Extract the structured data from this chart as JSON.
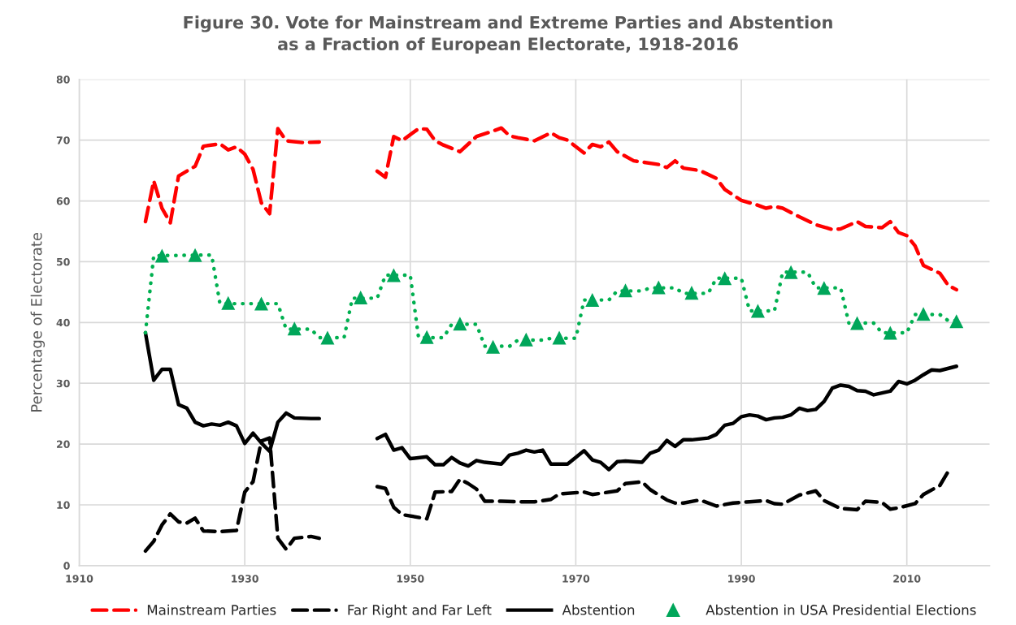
{
  "chart_data": {
    "type": "line",
    "title": "Figure 30. Vote for Mainstream and Extreme Parties and Abstention\nas a Fraction of European Electorate, 1918-2016",
    "ylabel": "Percentage of Electorate",
    "xlim": [
      1910,
      2020
    ],
    "xticks": [
      1910,
      1930,
      1950,
      1970,
      1990,
      2010
    ],
    "ylim": [
      0,
      80
    ],
    "yticks": [
      0,
      10,
      20,
      30,
      40,
      50,
      60,
      70,
      80
    ],
    "grid": true,
    "legend": "bottom",
    "series": [
      {
        "name": "Mainstream Parties",
        "color": "#ff0000",
        "line_style": "dashed",
        "marker": "none",
        "x": [
          1918,
          1919,
          1920,
          1921,
          1922,
          1924,
          1925,
          1927,
          1928,
          1929,
          1930,
          1931,
          1932,
          1933,
          1934,
          1935,
          1937,
          1939,
          1942,
          1946,
          1947,
          1948,
          1949,
          1951,
          1952,
          1953,
          1954,
          1956,
          1958,
          1960,
          1961,
          1962,
          1963,
          1965,
          1967,
          1968,
          1969,
          1971,
          1972,
          1973,
          1974,
          1975,
          1977,
          1980,
          1981,
          1982,
          1983,
          1985,
          1987,
          1988,
          1990,
          1992,
          1993,
          1994,
          1995,
          1997,
          1999,
          2001,
          2002,
          2004,
          2005,
          2007,
          2008,
          2009,
          2010,
          2011,
          2012,
          2014,
          2015,
          2016
        ],
        "values": [
          56.6,
          63.3,
          58.8,
          56.4,
          64.1,
          65.7,
          69.0,
          69.4,
          68.4,
          68.9,
          67.7,
          65.2,
          59.7,
          57.9,
          71.9,
          69.9,
          69.6,
          69.7,
          null,
          64.9,
          63.9,
          70.6,
          69.9,
          71.9,
          71.8,
          69.9,
          69.2,
          68.1,
          70.6,
          71.5,
          72.0,
          70.7,
          70.4,
          69.9,
          71.2,
          70.4,
          70.0,
          67.9,
          69.3,
          68.9,
          69.7,
          68.1,
          66.6,
          66.0,
          65.5,
          66.6,
          65.4,
          65.0,
          63.7,
          61.9,
          60.1,
          59.3,
          58.8,
          59.1,
          58.8,
          57.4,
          56.1,
          55.3,
          55.4,
          56.6,
          55.8,
          55.6,
          56.6,
          54.8,
          54.3,
          52.6,
          49.4,
          48.1,
          46.1,
          45.4
        ]
      },
      {
        "name": "Far Right and Far Left",
        "color": "#000000",
        "line_style": "dashed",
        "marker": "none",
        "x": [
          1918,
          1919,
          1920,
          1921,
          1922,
          1923,
          1924,
          1925,
          1927,
          1929,
          1930,
          1931,
          1932,
          1933,
          1934,
          1935,
          1936,
          1938,
          1939,
          1942,
          1946,
          1947,
          1948,
          1949,
          1952,
          1953,
          1955,
          1956,
          1957,
          1958,
          1959,
          1961,
          1963,
          1965,
          1967,
          1968,
          1971,
          1972,
          1975,
          1976,
          1978,
          1979,
          1981,
          1982,
          1983,
          1985,
          1987,
          1989,
          1991,
          1993,
          1994,
          1995,
          1997,
          1999,
          2000,
          2002,
          2004,
          2005,
          2007,
          2008,
          2009,
          2011,
          2012,
          2014,
          2015
        ],
        "values": [
          2.4,
          4.0,
          6.7,
          8.5,
          7.2,
          7.0,
          7.8,
          5.7,
          5.6,
          5.8,
          12.1,
          13.8,
          20.5,
          21.0,
          4.5,
          2.7,
          4.5,
          4.8,
          4.5,
          null,
          13.0,
          12.7,
          9.6,
          8.4,
          7.7,
          12.1,
          12.2,
          14.2,
          13.5,
          12.6,
          10.6,
          10.6,
          10.5,
          10.5,
          10.9,
          11.8,
          12.1,
          11.7,
          12.3,
          13.5,
          13.8,
          12.5,
          10.8,
          10.3,
          10.3,
          10.8,
          9.8,
          10.3,
          10.5,
          10.7,
          10.2,
          10.1,
          11.6,
          12.3,
          10.7,
          9.4,
          9.2,
          10.6,
          10.4,
          9.3,
          9.5,
          10.2,
          11.7,
          13.2,
          15.5
        ]
      },
      {
        "name": "Abstention",
        "color": "#000000",
        "line_style": "solid",
        "marker": "none",
        "x": [
          1918,
          1919,
          1920,
          1921,
          1922,
          1923,
          1924,
          1925,
          1926,
          1927,
          1928,
          1929,
          1930,
          1931,
          1932,
          1933,
          1934,
          1935,
          1936,
          1938,
          1939,
          1942,
          1946,
          1947,
          1948,
          1949,
          1950,
          1952,
          1953,
          1954,
          1955,
          1956,
          1957,
          1958,
          1959,
          1961,
          1962,
          1963,
          1964,
          1965,
          1966,
          1967,
          1969,
          1970,
          1971,
          1972,
          1973,
          1974,
          1975,
          1976,
          1978,
          1979,
          1980,
          1981,
          1982,
          1983,
          1984,
          1986,
          1987,
          1988,
          1989,
          1990,
          1991,
          1992,
          1993,
          1994,
          1995,
          1996,
          1997,
          1998,
          1999,
          2000,
          2001,
          2002,
          2003,
          2004,
          2005,
          2006,
          2007,
          2008,
          2009,
          2010,
          2011,
          2012,
          2013,
          2014,
          2016
        ],
        "values": [
          38.3,
          30.5,
          32.3,
          32.3,
          26.5,
          25.9,
          23.6,
          23.0,
          23.3,
          23.1,
          23.6,
          23.0,
          20.1,
          21.8,
          20.2,
          18.8,
          23.6,
          25.1,
          24.3,
          24.2,
          24.2,
          null,
          20.9,
          21.6,
          19.0,
          19.4,
          17.6,
          17.9,
          16.6,
          16.6,
          17.8,
          16.9,
          16.4,
          17.3,
          17.0,
          16.7,
          18.2,
          18.5,
          19.0,
          18.7,
          19.0,
          16.7,
          16.7,
          17.8,
          18.9,
          17.4,
          17.0,
          15.8,
          17.1,
          17.2,
          17.0,
          18.5,
          19.0,
          20.6,
          19.6,
          20.7,
          20.7,
          21.0,
          21.6,
          23.1,
          23.4,
          24.5,
          24.8,
          24.6,
          24.0,
          24.3,
          24.4,
          24.8,
          25.9,
          25.5,
          25.7,
          27.0,
          29.2,
          29.7,
          29.5,
          28.8,
          28.7,
          28.1,
          28.4,
          28.7,
          30.3,
          29.9,
          30.5,
          31.4,
          32.2,
          32.1,
          32.8
        ]
      },
      {
        "color": "#00b050",
        "line_style": "dotted",
        "marker": "none",
        "x": [
          1918,
          1919,
          1926,
          1927,
          1934,
          1935,
          1938,
          1939,
          1942,
          1943,
          1946,
          1947,
          1950,
          1951,
          1954,
          1955,
          1958,
          1959,
          1962,
          1963,
          1966,
          1967,
          1970,
          1971,
          1974,
          1975,
          1978,
          1979,
          1982,
          1983,
          1986,
          1987,
          1990,
          1991,
          1994,
          1995,
          1998,
          1999,
          2002,
          2003,
          2006,
          2007,
          2010,
          2011,
          2014,
          2015,
          2016
        ],
        "values": [
          38.3,
          51.0,
          51.1,
          43.1,
          43.1,
          38.9,
          38.9,
          37.5,
          37.5,
          44.0,
          44.0,
          47.8,
          47.8,
          37.5,
          37.5,
          39.7,
          39.7,
          36.1,
          36.1,
          37.1,
          37.1,
          37.4,
          37.4,
          43.7,
          43.7,
          45.2,
          45.2,
          45.7,
          45.7,
          44.8,
          44.8,
          47.3,
          47.3,
          41.9,
          41.9,
          48.3,
          48.3,
          45.7,
          45.7,
          39.9,
          39.9,
          38.3,
          38.3,
          41.3,
          41.3,
          40.3,
          40.3
        ]
      },
      {
        "name": "Abstention in USA Presidential Elections",
        "type": "scatter",
        "color": "#00a65a",
        "marker": "triangle",
        "x": [
          1920,
          1924,
          1928,
          1932,
          1936,
          1940,
          1944,
          1948,
          1952,
          1956,
          1960,
          1964,
          1968,
          1972,
          1976,
          1980,
          1984,
          1988,
          1992,
          1996,
          2000,
          2004,
          2008,
          2012,
          2016
        ],
        "values": [
          51.0,
          51.1,
          43.2,
          43.1,
          39.0,
          37.5,
          44.1,
          47.8,
          37.6,
          39.8,
          36.0,
          37.2,
          37.5,
          43.7,
          45.3,
          45.8,
          44.9,
          47.3,
          41.9,
          48.3,
          45.7,
          39.9,
          38.3,
          41.4,
          40.2
        ]
      }
    ]
  }
}
